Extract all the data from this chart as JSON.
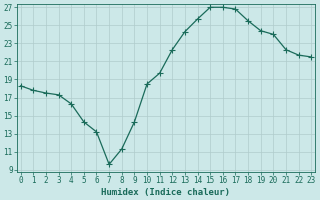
{
  "x": [
    0,
    1,
    2,
    3,
    4,
    5,
    6,
    7,
    8,
    9,
    10,
    11,
    12,
    13,
    14,
    15,
    16,
    17,
    18,
    19,
    20,
    21,
    22,
    23
  ],
  "y": [
    18.3,
    17.8,
    17.5,
    17.3,
    16.3,
    14.3,
    13.2,
    9.6,
    11.3,
    14.3,
    18.5,
    19.7,
    22.3,
    24.3,
    25.7,
    27.0,
    27.0,
    26.8,
    25.5,
    24.4,
    24.0,
    22.3,
    21.7,
    21.5
  ],
  "line_color": "#1a6b5a",
  "marker": "+",
  "marker_size": 4,
  "bg_color": "#cce8e8",
  "grid_color": "#b0cccc",
  "xlabel": "Humidex (Indice chaleur)",
  "xlim": [
    0,
    23
  ],
  "ylim": [
    9,
    27
  ],
  "xtick_labels": [
    "0",
    "1",
    "2",
    "3",
    "4",
    "5",
    "6",
    "7",
    "8",
    "9",
    "10",
    "11",
    "12",
    "13",
    "14",
    "15",
    "16",
    "17",
    "18",
    "19",
    "20",
    "21",
    "22",
    "23"
  ],
  "yticks": [
    9,
    11,
    13,
    15,
    17,
    19,
    21,
    23,
    25,
    27
  ],
  "tick_color": "#1a6b5a",
  "label_fontsize": 5.5,
  "xlabel_fontsize": 6.5,
  "linewidth": 0.9
}
